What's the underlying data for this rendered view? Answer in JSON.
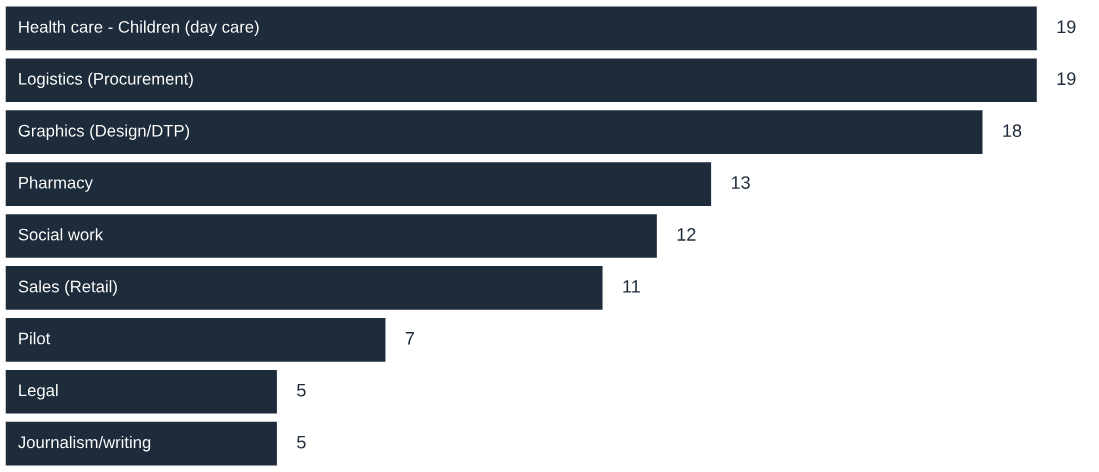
{
  "chart_data": {
    "type": "bar",
    "orientation": "horizontal",
    "data_labels": true,
    "tick_labels": false,
    "categories": [
      "Health care - Children (day care)",
      "Logistics (Procurement)",
      "Graphics (Design/DTP)",
      "Pharmacy",
      "Social work",
      "Sales (Retail)",
      "Pilot",
      "Legal",
      "Journalism/writing"
    ],
    "values": [
      19,
      19,
      18,
      13,
      12,
      11,
      7,
      5,
      5
    ],
    "color": "#1e2b3a"
  }
}
